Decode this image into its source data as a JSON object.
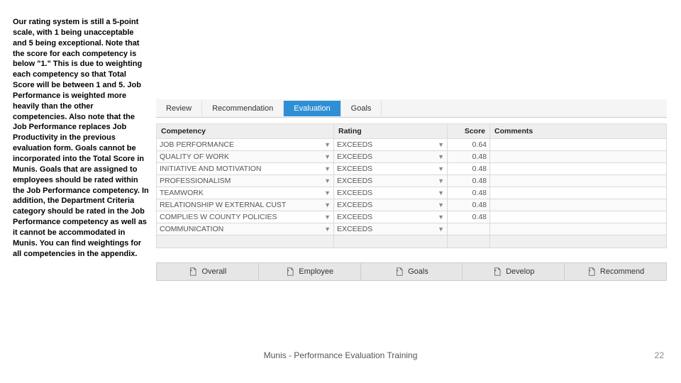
{
  "sidebar_text": "Our rating system is still a 5-point scale, with 1 being unacceptable and 5 being exceptional.  Note that the score for each competency is below \"1.\"  This is due to weighting each competency so that Total Score will be between 1 and 5.  Job Performance is weighted more heavily than the other competencies.  Also note that the Job Performance replaces Job Productivity in the previous evaluation form.  Goals cannot be incorporated into the Total Score in Munis.  Goals that are assigned to employees should be rated within the Job Performance competency.  In addition, the Department Criteria category should be rated in the Job Performance competency as well as it cannot be accommodated in Munis.  You can find weightings for all competencies in the appendix.",
  "tabs": {
    "items": [
      {
        "label": "Review",
        "active": false
      },
      {
        "label": "Recommendation",
        "active": false
      },
      {
        "label": "Evaluation",
        "active": true
      },
      {
        "label": "Goals",
        "active": false
      }
    ]
  },
  "table": {
    "headers": {
      "c0": "Competency",
      "c1": "Rating",
      "c2": "Score",
      "c3": "Comments"
    },
    "rows": [
      {
        "competency": "JOB PERFORMANCE",
        "rating": "EXCEEDS",
        "score": "0.64",
        "comments": ""
      },
      {
        "competency": "QUALITY OF WORK",
        "rating": "EXCEEDS",
        "score": "0.48",
        "comments": ""
      },
      {
        "competency": "INITIATIVE AND MOTIVATION",
        "rating": "EXCEEDS",
        "score": "0.48",
        "comments": ""
      },
      {
        "competency": "PROFESSIONALISM",
        "rating": "EXCEEDS",
        "score": "0.48",
        "comments": ""
      },
      {
        "competency": "TEAMWORK",
        "rating": "EXCEEDS",
        "score": "0.48",
        "comments": ""
      },
      {
        "competency": "RELATIONSHIP W EXTERNAL CUST",
        "rating": "EXCEEDS",
        "score": "0.48",
        "comments": ""
      },
      {
        "competency": "COMPLIES W COUNTY POLICIES",
        "rating": "EXCEEDS",
        "score": "0.48",
        "comments": ""
      },
      {
        "competency": "COMMUNICATION",
        "rating": "EXCEEDS",
        "score": "",
        "comments": ""
      }
    ]
  },
  "toolbar": {
    "items": [
      {
        "label": "Overall"
      },
      {
        "label": "Employee"
      },
      {
        "label": "Goals"
      },
      {
        "label": "Develop"
      },
      {
        "label": "Recommend"
      }
    ]
  },
  "footer": {
    "text": "Munis - Performance Evaluation Training",
    "page": "22"
  },
  "colors": {
    "tab_active_bg": "#2e8fd4",
    "tab_active_fg": "#ffffff",
    "grid_border": "#d9d9d9"
  }
}
